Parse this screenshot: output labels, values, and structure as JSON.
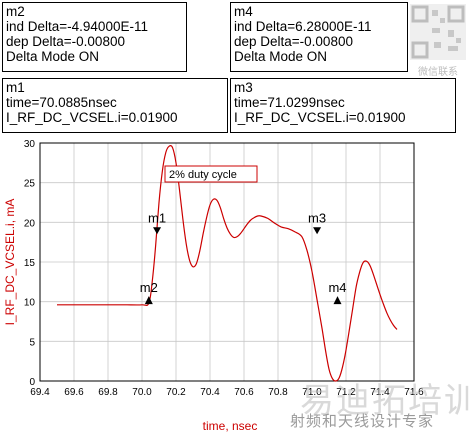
{
  "markers": [
    {
      "name": "m2",
      "lines": [
        "m2",
        "ind Delta=-4.94000E-11",
        "dep Delta=-0.00800",
        "Delta Mode ON"
      ]
    },
    {
      "name": "m4",
      "lines": [
        "m4",
        "ind Delta=6.28000E-11",
        "dep Delta=-0.00800",
        "Delta Mode ON"
      ]
    },
    {
      "name": "m1",
      "lines": [
        "m1",
        "time=70.0885nsec",
        "I_RF_DC_VCSEL.i=0.01900"
      ]
    },
    {
      "name": "m3",
      "lines": [
        "m3",
        "time=71.0299nsec",
        "I_RF_DC_VCSEL.i=0.01900"
      ]
    }
  ],
  "chart_data": {
    "type": "line",
    "title": "",
    "xlabel": "time, nsec",
    "ylabel": "I_RF_DC_VCSEL.i, mA",
    "xlim": [
      69.4,
      71.6
    ],
    "ylim": [
      0,
      30
    ],
    "xticks": [
      "69.4",
      "69.6",
      "69.8",
      "70.0",
      "70.2",
      "70.4",
      "70.6",
      "70.8",
      "71.0",
      "71.2",
      "71.4",
      "71.6"
    ],
    "yticks": [
      "0",
      "5",
      "10",
      "15",
      "20",
      "25",
      "30"
    ],
    "grid": true,
    "color": "#cc0000",
    "series": [
      {
        "x": [
          69.5,
          69.6,
          69.7,
          69.8,
          69.9,
          70.0,
          70.04,
          70.06,
          70.08,
          70.1,
          70.12,
          70.14,
          70.16,
          70.18,
          70.2,
          70.22,
          70.24,
          70.26,
          70.28,
          70.3,
          70.32,
          70.34,
          70.36,
          70.38,
          70.4,
          70.42,
          70.44,
          70.46,
          70.48,
          70.5,
          70.52,
          70.54,
          70.56,
          70.58,
          70.6,
          70.62,
          70.64,
          70.66,
          70.68,
          70.7,
          70.74,
          70.78,
          70.82,
          70.86,
          70.9,
          70.94,
          70.97,
          71.0,
          71.03,
          71.06,
          71.08,
          71.1,
          71.12,
          71.14,
          71.16,
          71.18,
          71.2,
          71.22,
          71.24,
          71.26,
          71.28,
          71.3,
          71.32,
          71.34,
          71.36,
          71.38,
          71.4,
          71.42,
          71.44,
          71.46,
          71.48,
          71.5
        ],
        "y": [
          9.6,
          9.6,
          9.6,
          9.6,
          9.6,
          9.6,
          9.8,
          12.5,
          17,
          22.5,
          26.5,
          28.8,
          29.6,
          29.4,
          27.5,
          24.2,
          20.5,
          17.3,
          15.2,
          14.4,
          14.8,
          16.4,
          18.6,
          20.6,
          22.2,
          22.9,
          22.8,
          21.9,
          20.5,
          19.3,
          18.5,
          18.1,
          18.2,
          18.6,
          19.2,
          19.8,
          20.3,
          20.6,
          20.8,
          20.8,
          20.5,
          19.9,
          19.4,
          19.2,
          18.8,
          18.2,
          16.5,
          13.8,
          10.2,
          6.5,
          3.8,
          1.5,
          0.3,
          0.0,
          0.4,
          1.8,
          3.9,
          6.5,
          9.2,
          11.9,
          13.7,
          14.9,
          15.1,
          14.6,
          13.5,
          12.2,
          10.9,
          9.7,
          8.6,
          7.7,
          7.0,
          6.5
        ]
      }
    ],
    "markers": [
      {
        "name": "m1",
        "x": 70.0885,
        "y": 19
      },
      {
        "name": "m2",
        "x": 70.04,
        "y": 10.2
      },
      {
        "name": "m3",
        "x": 71.0299,
        "y": 19
      },
      {
        "name": "m4",
        "x": 71.15,
        "y": 10.2
      }
    ],
    "annotation": "2% duty cycle"
  },
  "watermark": {
    "line1": "易迪拓培训",
    "line2": "射频和天线设计专家",
    "logo_text": "微信联系"
  }
}
